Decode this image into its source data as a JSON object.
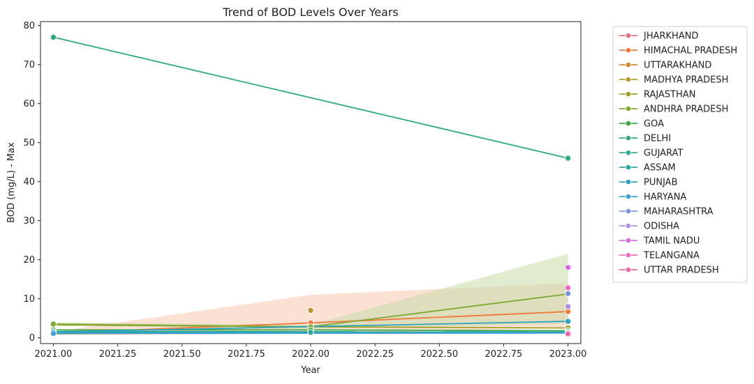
{
  "chart_data": {
    "type": "line",
    "title": "Trend of BOD Levels Over Years",
    "xlabel": "Year",
    "ylabel": "BOD (mg/L) - Max",
    "xlim": [
      2020.95,
      2023.05
    ],
    "ylim": [
      -1.5,
      81
    ],
    "x_ticks": [
      2021.0,
      2021.25,
      2021.5,
      2021.75,
      2022.0,
      2022.25,
      2022.5,
      2022.75,
      2023.0
    ],
    "x_tick_labels": [
      "2021.00",
      "2021.25",
      "2021.50",
      "2021.75",
      "2022.00",
      "2022.25",
      "2022.50",
      "2022.75",
      "2023.00"
    ],
    "y_ticks": [
      0,
      10,
      20,
      30,
      40,
      50,
      60,
      70,
      80
    ],
    "y_tick_labels": [
      "0",
      "10",
      "20",
      "30",
      "40",
      "50",
      "60",
      "70",
      "80"
    ],
    "grid": false,
    "legend_position": "outside-right",
    "series": [
      {
        "name": "JHARKHAND",
        "color": "#e8707c",
        "x": [
          2023
        ],
        "y": [
          1.0
        ]
      },
      {
        "name": "HIMACHAL PRADESH",
        "color": "#f0783c",
        "x": [
          2021,
          2022,
          2023
        ],
        "y": [
          1.2,
          3.8,
          6.7
        ],
        "ci": {
          "x": [
            2021,
            2022,
            2023
          ],
          "lower": [
            0.9,
            1.0,
            2.5
          ],
          "upper": [
            1.5,
            11.0,
            14.0
          ],
          "color": "#f8c8b0"
        }
      },
      {
        "name": "UTTARAKHAND",
        "color": "#d4882c",
        "x": [
          2021,
          2022,
          2023
        ],
        "y": [
          1.0,
          1.2,
          1.4
        ]
      },
      {
        "name": "MADHYA PRADESH",
        "color": "#b89a2c",
        "x": [
          2022
        ],
        "y": [
          7.0
        ]
      },
      {
        "name": "RAJASTHAN",
        "color": "#a0a028",
        "x": [
          2021,
          2022,
          2023
        ],
        "y": [
          3.3,
          2.8,
          2.5
        ]
      },
      {
        "name": "ANDHRA PRADESH",
        "color": "#7ea832",
        "x": [
          2021,
          2022,
          2023
        ],
        "y": [
          3.5,
          2.8,
          11.2
        ],
        "ci": {
          "x": [
            2021,
            2022,
            2023
          ],
          "lower": [
            3.0,
            2.2,
            3.5
          ],
          "upper": [
            4.0,
            3.3,
            21.5
          ],
          "color": "#c8dca8"
        }
      },
      {
        "name": "GOA",
        "color": "#3ca83c",
        "x": [
          2021,
          2022,
          2023
        ],
        "y": [
          2.0,
          2.0,
          1.8
        ]
      },
      {
        "name": "DELHI",
        "color": "#2eab78",
        "x": [
          2021,
          2023
        ],
        "y": [
          77.0,
          46.0
        ]
      },
      {
        "name": "GUJARAT",
        "color": "#2eaa94",
        "x": [
          2021,
          2022,
          2023
        ],
        "y": [
          1.4,
          1.4,
          1.4
        ]
      },
      {
        "name": "ASSAM",
        "color": "#2aa8a8",
        "x": [
          2021,
          2023
        ],
        "y": [
          1.6,
          1.5
        ]
      },
      {
        "name": "PUNJAB",
        "color": "#2ca2be",
        "x": [
          2021,
          2023
        ],
        "y": [
          1.5,
          4.2
        ]
      },
      {
        "name": "HARYANA",
        "color": "#3a9ee0",
        "x": [
          2021,
          2023
        ],
        "y": [
          1.1,
          1.2
        ]
      },
      {
        "name": "MAHARASHTRA",
        "color": "#7a92ea",
        "x": [
          2023
        ],
        "y": [
          11.3
        ]
      },
      {
        "name": "ODISHA",
        "color": "#ae8ee8",
        "x": [
          2023
        ],
        "y": [
          8.0
        ]
      },
      {
        "name": "TAMIL NADU",
        "color": "#de66e6",
        "x": [
          2023
        ],
        "y": [
          18.0
        ]
      },
      {
        "name": "TELANGANA",
        "color": "#f068c8",
        "x": [
          2023
        ],
        "y": [
          12.8
        ]
      },
      {
        "name": "UTTAR PRADESH",
        "color": "#f066a8",
        "x": [
          2023
        ],
        "y": [
          1.0
        ]
      }
    ]
  }
}
